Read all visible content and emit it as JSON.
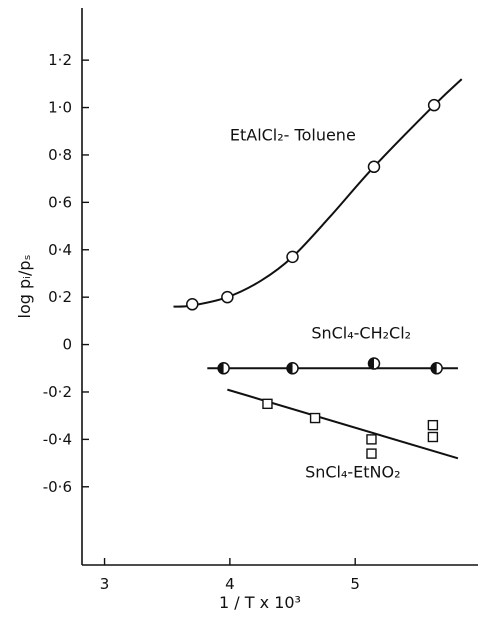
{
  "chart_data": {
    "type": "scatter",
    "xlabel": "1 / T x 10³",
    "ylabel": "log pᵢ/pₛ",
    "xlim": [
      2.82,
      5.98
    ],
    "ylim": [
      -0.93,
      1.42
    ],
    "x_ticks": [
      3,
      4,
      5
    ],
    "x_tick_labels": [
      "3",
      "4",
      "5"
    ],
    "y_ticks": [
      -0.6,
      -0.4,
      -0.2,
      0,
      0.2,
      0.4,
      0.6,
      0.8,
      1.0,
      1.2
    ],
    "y_tick_labels": [
      "-0·6",
      "-0·4",
      "-0·2",
      "0",
      "0·2",
      "0·4",
      "0·6",
      "0·8",
      "1·0",
      "1·2"
    ],
    "grid": false,
    "series": [
      {
        "name": "EtAlCl₂-Toluene",
        "marker": "open-circle",
        "points": [
          [
            3.7,
            0.17
          ],
          [
            3.98,
            0.2
          ],
          [
            4.5,
            0.37
          ],
          [
            5.15,
            0.75
          ],
          [
            5.63,
            1.01
          ]
        ],
        "curve": [
          [
            3.55,
            0.16
          ],
          [
            3.7,
            0.165
          ],
          [
            3.98,
            0.2
          ],
          [
            4.25,
            0.27
          ],
          [
            4.5,
            0.37
          ],
          [
            4.8,
            0.54
          ],
          [
            5.15,
            0.75
          ],
          [
            5.63,
            1.01
          ],
          [
            5.85,
            1.12
          ]
        ]
      },
      {
        "name": "SnCl₄-CH₂Cl₂",
        "marker": "half-filled-circle",
        "points": [
          [
            3.95,
            -0.1
          ],
          [
            4.5,
            -0.1
          ],
          [
            5.15,
            -0.08
          ],
          [
            5.65,
            -0.1
          ]
        ],
        "curve": [
          [
            3.82,
            -0.1
          ],
          [
            5.82,
            -0.1
          ]
        ]
      },
      {
        "name": "SnCl₄-EtNO₂",
        "marker": "open-square",
        "points": [
          [
            4.3,
            -0.25
          ],
          [
            4.68,
            -0.31
          ],
          [
            5.13,
            -0.4
          ],
          [
            5.13,
            -0.46
          ],
          [
            5.62,
            -0.34
          ],
          [
            5.62,
            -0.39
          ]
        ],
        "curve": [
          [
            3.98,
            -0.19
          ],
          [
            5.82,
            -0.48
          ]
        ]
      }
    ],
    "annotations": [
      {
        "text": "EtAlCl₂- Toluene",
        "x": 4.0,
        "y": 0.86
      },
      {
        "text": "SnCl₄-CH₂Cl₂",
        "x": 4.65,
        "y": 0.025
      },
      {
        "text": "SnCl₄-EtNO₂",
        "x": 4.6,
        "y": -0.56
      }
    ]
  }
}
